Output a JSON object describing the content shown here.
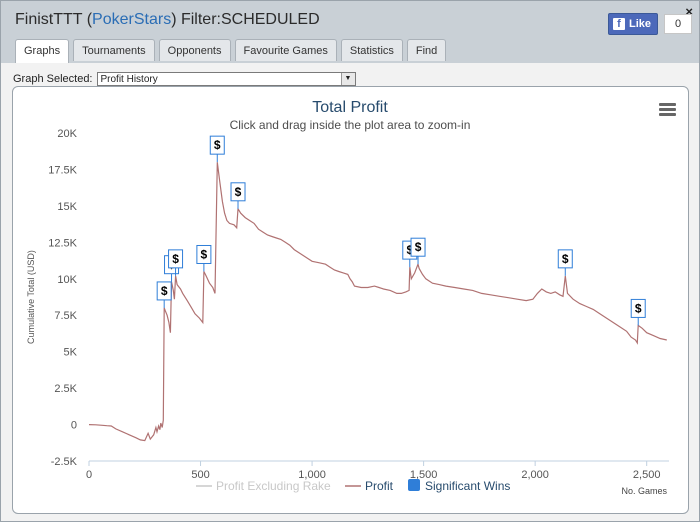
{
  "window": {
    "title_user": "FinistTTT",
    "title_site": "PokerStars",
    "title_filter": "Filter:SCHEDULED",
    "close": "×"
  },
  "facebook": {
    "like_label": "Like",
    "count": "0",
    "icon": "facebook-f-icon"
  },
  "tabs": [
    {
      "label": "Graphs",
      "active": true
    },
    {
      "label": "Tournaments"
    },
    {
      "label": "Opponents"
    },
    {
      "label": "Favourite Games"
    },
    {
      "label": "Statistics"
    },
    {
      "label": "Find"
    }
  ],
  "graph_selector": {
    "label": "Graph Selected:",
    "value": "Profit History"
  },
  "chart_data": {
    "type": "line",
    "title": "Total Profit",
    "subtitle": "Click and drag inside the plot area to zoom-in",
    "ylabel": "Cumulative Total (USD)",
    "xlabel": "No. Games",
    "ylim": [
      -2500,
      20000
    ],
    "xlim": [
      0,
      2600
    ],
    "y_ticks": [
      "-2.5K",
      "0",
      "2.5K",
      "5K",
      "7.5K",
      "10K",
      "12.5K",
      "15K",
      "17.5K",
      "20K"
    ],
    "y_tick_values": [
      -2500,
      0,
      2500,
      5000,
      7500,
      10000,
      12500,
      15000,
      17500,
      20000
    ],
    "x_ticks": [
      "0",
      "500",
      "1,000",
      "1,500",
      "2,000",
      "2,500"
    ],
    "x_tick_values": [
      0,
      500,
      1000,
      1500,
      2000,
      2500
    ],
    "grid": false,
    "legend_position": "bottom",
    "legend": [
      {
        "name": "Profit Excluding Rake",
        "color": "#c8c8c8",
        "visible": false
      },
      {
        "name": "Profit",
        "color": "#b07272"
      },
      {
        "name": "Significant Wins",
        "color": "#2f7ed8",
        "symbol": "square"
      }
    ],
    "series": [
      {
        "name": "Profit",
        "color": "#b07272",
        "points": [
          [
            0,
            0
          ],
          [
            30,
            -20
          ],
          [
            60,
            -50
          ],
          [
            80,
            -80
          ],
          [
            100,
            -100
          ],
          [
            120,
            -300
          ],
          [
            150,
            -500
          ],
          [
            180,
            -700
          ],
          [
            210,
            -900
          ],
          [
            230,
            -1050
          ],
          [
            250,
            -1100
          ],
          [
            265,
            -600
          ],
          [
            275,
            -1000
          ],
          [
            290,
            -700
          ],
          [
            300,
            -200
          ],
          [
            305,
            -500
          ],
          [
            312,
            -100
          ],
          [
            318,
            -350
          ],
          [
            322,
            100
          ],
          [
            328,
            -200
          ],
          [
            333,
            300
          ],
          [
            337,
            8000
          ],
          [
            342,
            7800
          ],
          [
            350,
            7500
          ],
          [
            358,
            7000
          ],
          [
            365,
            6300
          ],
          [
            370,
            9800
          ],
          [
            378,
            9200
          ],
          [
            383,
            8600
          ],
          [
            388,
            10200
          ],
          [
            395,
            9600
          ],
          [
            410,
            9300
          ],
          [
            420,
            9000
          ],
          [
            440,
            8500
          ],
          [
            460,
            8000
          ],
          [
            475,
            7600
          ],
          [
            495,
            7300
          ],
          [
            510,
            7000
          ],
          [
            515,
            10500
          ],
          [
            525,
            10200
          ],
          [
            540,
            9700
          ],
          [
            555,
            9400
          ],
          [
            565,
            9000
          ],
          [
            575,
            18000
          ],
          [
            585,
            16800
          ],
          [
            598,
            15300
          ],
          [
            608,
            14500
          ],
          [
            618,
            14000
          ],
          [
            630,
            13800
          ],
          [
            650,
            13700
          ],
          [
            662,
            13500
          ],
          [
            668,
            14800
          ],
          [
            680,
            14500
          ],
          [
            700,
            14200
          ],
          [
            720,
            14000
          ],
          [
            740,
            13800
          ],
          [
            760,
            13400
          ],
          [
            780,
            13200
          ],
          [
            800,
            13000
          ],
          [
            820,
            12900
          ],
          [
            840,
            12800
          ],
          [
            860,
            12700
          ],
          [
            880,
            12500
          ],
          [
            900,
            12300
          ],
          [
            920,
            12000
          ],
          [
            950,
            11700
          ],
          [
            980,
            11400
          ],
          [
            1000,
            11200
          ],
          [
            1030,
            11100
          ],
          [
            1060,
            11000
          ],
          [
            1080,
            10800
          ],
          [
            1100,
            10600
          ],
          [
            1120,
            10500
          ],
          [
            1140,
            10400
          ],
          [
            1160,
            10300
          ],
          [
            1170,
            10000
          ],
          [
            1180,
            9800
          ],
          [
            1190,
            9500
          ],
          [
            1220,
            9400
          ],
          [
            1250,
            9400
          ],
          [
            1280,
            9500
          ],
          [
            1300,
            9400
          ],
          [
            1320,
            9300
          ],
          [
            1350,
            9200
          ],
          [
            1380,
            9000
          ],
          [
            1400,
            9000
          ],
          [
            1420,
            9100
          ],
          [
            1435,
            9200
          ],
          [
            1438,
            10800
          ],
          [
            1445,
            10000
          ],
          [
            1460,
            10400
          ],
          [
            1475,
            11000
          ],
          [
            1480,
            10700
          ],
          [
            1495,
            10300
          ],
          [
            1510,
            10000
          ],
          [
            1540,
            9700
          ],
          [
            1570,
            9600
          ],
          [
            1600,
            9500
          ],
          [
            1640,
            9400
          ],
          [
            1680,
            9300
          ],
          [
            1720,
            9200
          ],
          [
            1760,
            9000
          ],
          [
            1800,
            8900
          ],
          [
            1840,
            8800
          ],
          [
            1880,
            8700
          ],
          [
            1920,
            8600
          ],
          [
            1960,
            8500
          ],
          [
            1990,
            8600
          ],
          [
            2010,
            9000
          ],
          [
            2030,
            9300
          ],
          [
            2050,
            9100
          ],
          [
            2070,
            9000
          ],
          [
            2090,
            9100
          ],
          [
            2110,
            8900
          ],
          [
            2125,
            8800
          ],
          [
            2135,
            10200
          ],
          [
            2145,
            9000
          ],
          [
            2170,
            8600
          ],
          [
            2200,
            8300
          ],
          [
            2230,
            8100
          ],
          [
            2260,
            7900
          ],
          [
            2290,
            7600
          ],
          [
            2320,
            7300
          ],
          [
            2350,
            7000
          ],
          [
            2380,
            6700
          ],
          [
            2410,
            6400
          ],
          [
            2430,
            6000
          ],
          [
            2450,
            5800
          ],
          [
            2458,
            5600
          ],
          [
            2462,
            6800
          ],
          [
            2480,
            6600
          ],
          [
            2500,
            6300
          ],
          [
            2530,
            6100
          ],
          [
            2560,
            5900
          ],
          [
            2590,
            5800
          ]
        ]
      }
    ],
    "significant_wins": [
      {
        "x": 337,
        "y": 8000,
        "label": "$"
      },
      {
        "x": 370,
        "y": 9800,
        "label": "$"
      },
      {
        "x": 388,
        "y": 10200,
        "label": "$"
      },
      {
        "x": 515,
        "y": 10500,
        "label": "$"
      },
      {
        "x": 575,
        "y": 18000,
        "label": "$"
      },
      {
        "x": 668,
        "y": 14800,
        "label": "$"
      },
      {
        "x": 1438,
        "y": 10800,
        "label": "$"
      },
      {
        "x": 1475,
        "y": 11000,
        "label": "$"
      },
      {
        "x": 2135,
        "y": 10200,
        "label": "$"
      },
      {
        "x": 2462,
        "y": 6800,
        "label": "$"
      }
    ]
  },
  "menu_icon": "hamburger-menu-icon"
}
